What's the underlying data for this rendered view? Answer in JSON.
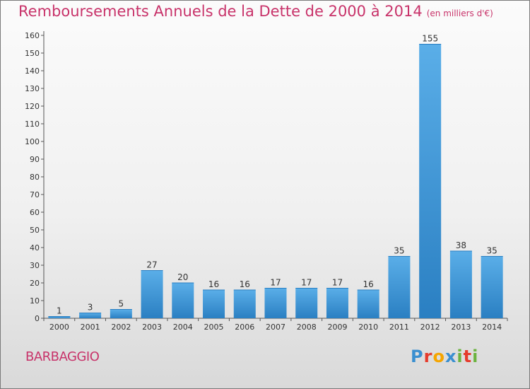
{
  "title": "Remboursements Annuels de la Dette de 2000 à 2014",
  "unit": "(en milliers d'€)",
  "commune": "BARBAGGIO",
  "logo": [
    "P",
    "r",
    "o",
    "x",
    "i",
    "t",
    "i"
  ],
  "colors": {
    "bar_light": "#5aaee8",
    "bar_dark": "#2a7fc2",
    "title": "#c8336a"
  },
  "chart_data": {
    "type": "bar",
    "categories": [
      "2000",
      "2001",
      "2002",
      "2003",
      "2004",
      "2005",
      "2006",
      "2007",
      "2008",
      "2009",
      "2010",
      "2011",
      "2012",
      "2013",
      "2014"
    ],
    "values": [
      1,
      3,
      5,
      27,
      20,
      16,
      16,
      17,
      17,
      17,
      16,
      35,
      155,
      38,
      35
    ],
    "ylim": [
      0,
      160
    ],
    "yticks": [
      0,
      10,
      20,
      30,
      40,
      50,
      60,
      70,
      80,
      90,
      100,
      110,
      120,
      130,
      140,
      150,
      160
    ],
    "grid": false
  }
}
